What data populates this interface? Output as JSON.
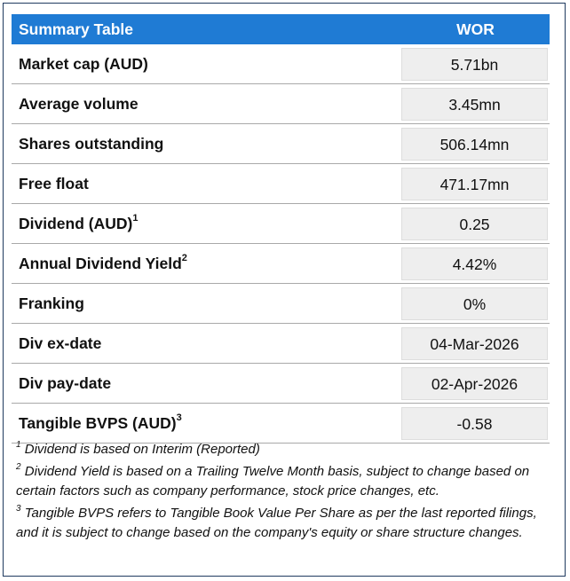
{
  "table": {
    "header_label": "Summary Table",
    "header_ticker": "WOR",
    "rows": [
      {
        "label": "Market cap (AUD)",
        "sup": "",
        "value": "5.71bn"
      },
      {
        "label": "Average volume",
        "sup": "",
        "value": "3.45mn"
      },
      {
        "label": "Shares outstanding",
        "sup": "",
        "value": "506.14mn"
      },
      {
        "label": "Free float",
        "sup": "",
        "value": "471.17mn"
      },
      {
        "label": "Dividend (AUD)",
        "sup": "1",
        "value": "0.25"
      },
      {
        "label": "Annual Dividend Yield",
        "sup": "2",
        "value": "4.42%"
      },
      {
        "label": "Franking",
        "sup": "",
        "value": "0%"
      },
      {
        "label": "Div ex-date",
        "sup": "",
        "value": "04-Mar-2026"
      },
      {
        "label": "Div pay-date",
        "sup": "",
        "value": "02-Apr-2026"
      },
      {
        "label": "Tangible BVPS (AUD)",
        "sup": "3",
        "value": "-0.58"
      }
    ]
  },
  "footnotes": [
    {
      "num": "1",
      "text": "Dividend is based on Interim (Reported)"
    },
    {
      "num": "2",
      "text": "Dividend Yield is based on a Trailing Twelve Month basis, subject to change based on certain factors such as company performance, stock price changes, etc."
    },
    {
      "num": "3",
      "text": "Tangible BVPS refers to Tangible Book Value Per Share as per the last reported filings, and it is subject to change based on the company's equity or share structure changes."
    }
  ]
}
